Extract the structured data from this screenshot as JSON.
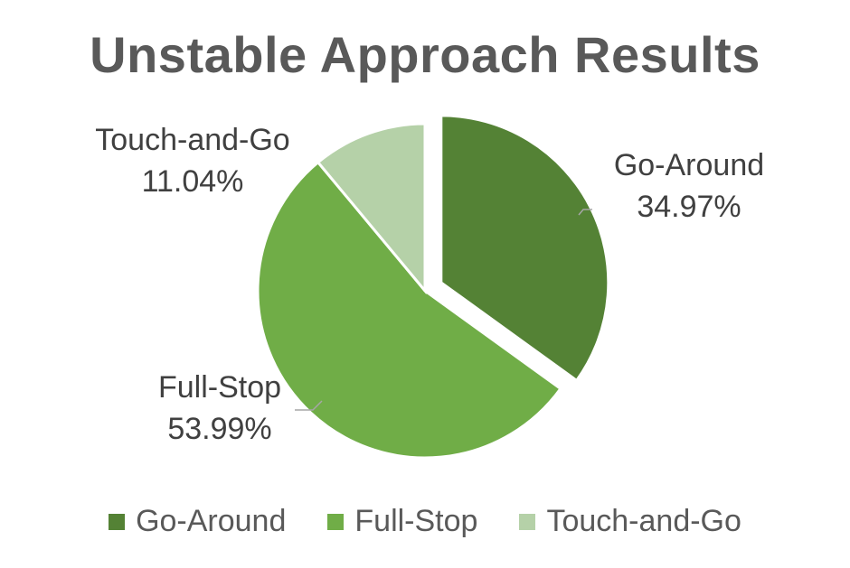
{
  "chart_data": {
    "type": "pie",
    "title": "Unstable Approach Results",
    "categories": [
      "Go-Around",
      "Full-Stop",
      "Touch-and-Go"
    ],
    "values": [
      34.97,
      53.99,
      11.04
    ],
    "labels": [
      "34.97%",
      "53.99%",
      "11.04%"
    ],
    "colors": [
      "#548235",
      "#70ad47",
      "#b5d1a8"
    ],
    "exploded": [
      "Go-Around"
    ],
    "legend_position": "bottom"
  }
}
